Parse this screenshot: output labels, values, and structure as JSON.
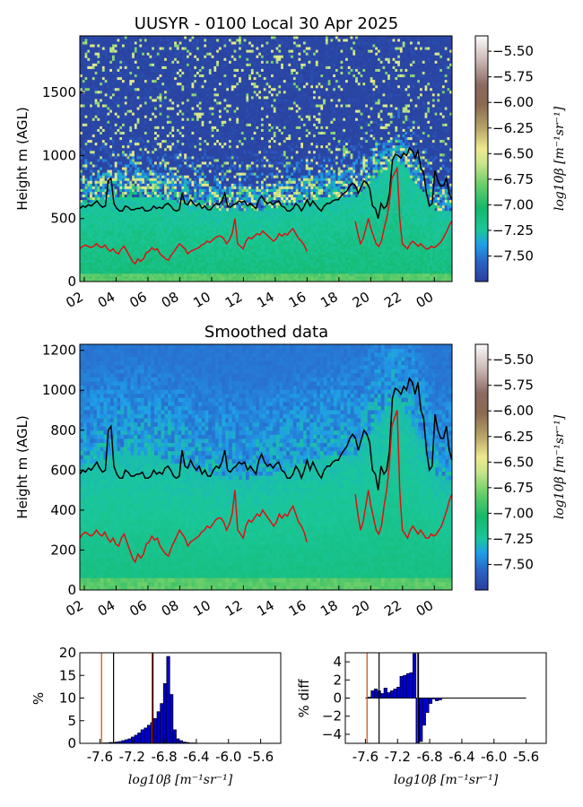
{
  "chart_data": [
    {
      "type": "heatmap",
      "title": "UUSYR - 0100 Local 30 Apr 2025",
      "ylabel": "Height m (AGL)",
      "xticks": [
        "02",
        "04",
        "06",
        "08",
        "10",
        "12",
        "14",
        "16",
        "18",
        "20",
        "22",
        "00"
      ],
      "yticks": [
        0,
        500,
        1000,
        1500
      ],
      "ylim": [
        0,
        1950
      ],
      "colorbar": {
        "label": "log10β [m⁻¹sr⁻¹]",
        "ticks": [
          "-5.50",
          "-5.75",
          "-6.00",
          "-6.25",
          "-6.50",
          "-6.75",
          "-7.00",
          "-7.25",
          "-7.50"
        ],
        "range": [
          -7.75,
          -5.35
        ]
      },
      "series": [
        {
          "color": "#000000",
          "values": [
            580,
            600,
            590,
            610,
            600,
            620,
            640,
            610,
            590,
            600,
            800,
            820,
            620,
            580,
            560,
            560,
            600,
            590,
            570,
            570,
            580,
            580,
            590,
            560,
            560,
            570,
            600,
            580,
            590,
            580,
            610,
            620,
            600,
            570,
            560,
            570,
            700,
            620,
            610,
            650,
            620,
            600,
            620,
            580,
            600,
            570,
            570,
            600,
            620,
            610,
            640,
            700,
            600,
            590,
            610,
            620,
            640,
            630,
            640,
            600,
            620,
            600,
            580,
            650,
            680,
            640,
            620,
            630,
            610,
            630,
            640,
            600,
            590,
            560,
            560,
            580,
            620,
            600,
            560,
            600,
            650,
            600,
            640,
            610,
            580,
            560,
            600,
            620,
            620,
            640,
            650,
            650,
            680,
            700,
            720,
            760,
            780,
            760,
            700,
            750,
            800,
            780,
            740,
            600,
            580,
            500,
            620,
            580,
            600,
            700,
            960,
            1010,
            1000,
            980,
            1020,
            1000,
            1060,
            1040,
            980,
            1040,
            900,
            860,
            700,
            600,
            620,
            880,
            800,
            760,
            760,
            820,
            700,
            650
          ]
        },
        {
          "color": "#e01010",
          "values": [
            260,
            280,
            290,
            280,
            270,
            280,
            300,
            280,
            270,
            290,
            260,
            240,
            260,
            230,
            220,
            260,
            280,
            240,
            200,
            160,
            140,
            180,
            160,
            180,
            230,
            240,
            270,
            250,
            260,
            220,
            200,
            180,
            170,
            210,
            240,
            270,
            300,
            280,
            260,
            220,
            240,
            250,
            260,
            270,
            290,
            300,
            320,
            310,
            330,
            350,
            360,
            360,
            340,
            300,
            330,
            380,
            500,
            300,
            280,
            260,
            320,
            350,
            340,
            360,
            380,
            370,
            400,
            380,
            360,
            340,
            320,
            340,
            380,
            360,
            380,
            370,
            400,
            420,
            380,
            340,
            320,
            290,
            240
          ]
        },
        {
          "color": "#e01010",
          "values": [
            480,
            380,
            300,
            340,
            420,
            500,
            420,
            360,
            300,
            280,
            320,
            420,
            500,
            620,
            820,
            860,
            900,
            500,
            300,
            280,
            260,
            300,
            320,
            300,
            280,
            300,
            280,
            260,
            260,
            280,
            270,
            280,
            300,
            320,
            360,
            400,
            450,
            480
          ]
        }
      ]
    },
    {
      "type": "heatmap",
      "title": "Smoothed data",
      "ylabel": "Height m (AGL)",
      "xticks": [
        "02",
        "04",
        "06",
        "08",
        "10",
        "12",
        "14",
        "16",
        "18",
        "20",
        "22",
        "00"
      ],
      "yticks": [
        0,
        200,
        400,
        600,
        800,
        1000,
        1200
      ],
      "ylim": [
        0,
        1230
      ],
      "colorbar": {
        "label": "log10β [m⁻¹sr⁻¹]",
        "ticks": [
          "-5.50",
          "-5.75",
          "-6.00",
          "-6.25",
          "-6.50",
          "-6.75",
          "-7.00",
          "-7.25",
          "-7.50"
        ],
        "range": [
          -7.75,
          -5.35
        ]
      }
    },
    {
      "type": "bar",
      "title": "",
      "ylabel": "%",
      "xlabel": "log10β [m⁻¹sr⁻¹]",
      "xticks": [
        "-7.6",
        "-7.2",
        "-6.8",
        "-6.4",
        "-6.0",
        "-5.6"
      ],
      "xlim": [
        -7.85,
        -5.35
      ],
      "yticks": [
        0,
        5,
        10,
        15,
        20
      ],
      "ylim": [
        0,
        20
      ],
      "bin_centers": [
        -7.55,
        -7.51,
        -7.47,
        -7.43,
        -7.39,
        -7.35,
        -7.31,
        -7.27,
        -7.23,
        -7.19,
        -7.15,
        -7.11,
        -7.07,
        -7.03,
        -6.99,
        -6.95,
        -6.91,
        -6.87,
        -6.83,
        -6.79,
        -6.75,
        -6.71,
        -6.67,
        -6.63,
        -6.59,
        -6.55,
        -6.51,
        -6.47,
        -6.43
      ],
      "values": [
        0.1,
        0.1,
        0.2,
        0.2,
        0.3,
        0.4,
        0.6,
        0.8,
        1.0,
        1.4,
        1.8,
        2.3,
        3.0,
        3.4,
        4.0,
        4.6,
        5.5,
        7.0,
        8.8,
        13.2,
        19.2,
        10.8,
        3.0,
        1.0,
        0.6,
        0.3,
        0.2,
        0.1,
        0.1
      ],
      "vlines": [
        {
          "x": -7.58,
          "color": "#c04a0c"
        },
        {
          "x": -7.43,
          "color": "#000000"
        },
        {
          "x": -6.95,
          "color": "#e01010"
        },
        {
          "x": -6.94,
          "color": "#000000"
        }
      ]
    },
    {
      "type": "bar",
      "title": "",
      "ylabel": "% diff",
      "xlabel": "log10β [m⁻¹sr⁻¹]",
      "xticks": [
        "-7.6",
        "-7.2",
        "-6.8",
        "-6.4",
        "-6.0",
        "-5.6"
      ],
      "xlim": [
        -7.85,
        -5.35
      ],
      "yticks": [
        -4,
        -2,
        0,
        2,
        4
      ],
      "ylim": [
        -5,
        5
      ],
      "bin_centers": [
        -7.55,
        -7.51,
        -7.47,
        -7.43,
        -7.39,
        -7.35,
        -7.31,
        -7.27,
        -7.23,
        -7.19,
        -7.15,
        -7.11,
        -7.07,
        -7.03,
        -6.99,
        -6.95,
        -6.91,
        -6.87,
        -6.83,
        -6.79,
        -6.75,
        -6.71,
        -6.67,
        -6.63,
        -6.59
      ],
      "values": [
        0.1,
        0.8,
        1.0,
        0.8,
        0.5,
        1.1,
        0.6,
        0.8,
        1.0,
        1.2,
        2.4,
        2.5,
        2.7,
        2.8,
        4.9,
        -5.0,
        -4.8,
        -3.0,
        -1.6,
        -0.6,
        -0.1,
        -0.3,
        -0.2,
        0.0,
        0.0
      ],
      "zero_line": [
        -7.6,
        -5.6
      ],
      "vlines": [
        {
          "x": -7.58,
          "color": "#c04a0c"
        },
        {
          "x": -7.43,
          "color": "#000000"
        },
        {
          "x": -6.95,
          "color": "#e01010"
        },
        {
          "x": -6.94,
          "color": "#000000"
        }
      ]
    }
  ]
}
